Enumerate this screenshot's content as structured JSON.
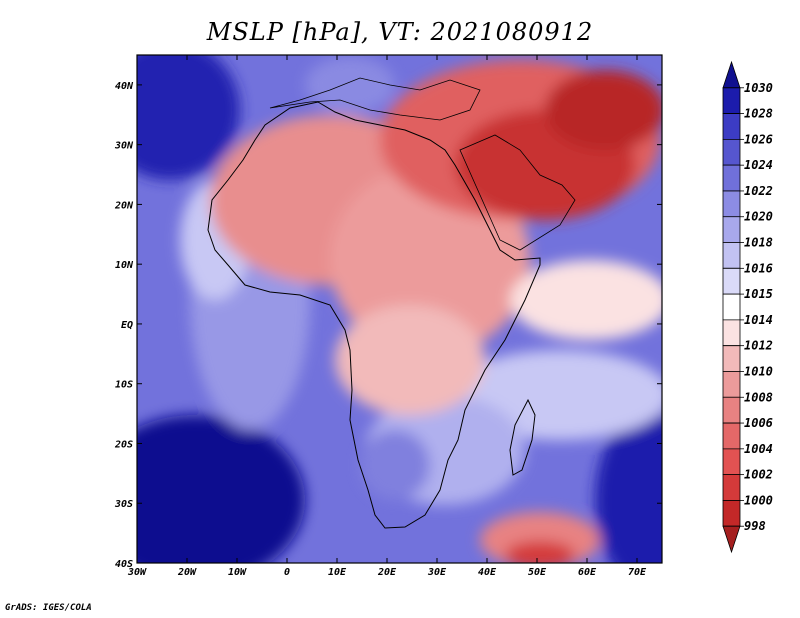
{
  "title": "MSLP [hPa], VT: 2021080912",
  "credit": "GrADS: IGES/COLA",
  "chart_data": {
    "type": "heatmap",
    "title": "MSLP [hPa], VT: 2021080912",
    "variable": "MSLP",
    "units": "hPa",
    "valid_time": "2021080912",
    "lon_range": [
      -30,
      75
    ],
    "lat_range": [
      -40,
      45
    ],
    "x_ticks": [
      {
        "lon": -30,
        "label": "30W"
      },
      {
        "lon": -20,
        "label": "20W"
      },
      {
        "lon": -10,
        "label": "10W"
      },
      {
        "lon": 0,
        "label": "0"
      },
      {
        "lon": 10,
        "label": "10E"
      },
      {
        "lon": 20,
        "label": "20E"
      },
      {
        "lon": 30,
        "label": "30E"
      },
      {
        "lon": 40,
        "label": "40E"
      },
      {
        "lon": 50,
        "label": "50E"
      },
      {
        "lon": 60,
        "label": "60E"
      },
      {
        "lon": 70,
        "label": "70E"
      }
    ],
    "y_ticks": [
      {
        "lat": 40,
        "label": "40N"
      },
      {
        "lat": 30,
        "label": "30N"
      },
      {
        "lat": 20,
        "label": "20N"
      },
      {
        "lat": 10,
        "label": "10N"
      },
      {
        "lat": 0,
        "label": "EQ"
      },
      {
        "lat": -10,
        "label": "10S"
      },
      {
        "lat": -20,
        "label": "20S"
      },
      {
        "lat": -30,
        "label": "30S"
      },
      {
        "lat": -40,
        "label": "40S"
      }
    ],
    "colorbar": {
      "levels": [
        "998",
        "1000",
        "1002",
        "1004",
        "1006",
        "1008",
        "1010",
        "1012",
        "1014",
        "1015",
        "1016",
        "1018",
        "1020",
        "1022",
        "1024",
        "1026",
        "1028",
        "1030"
      ],
      "colors": [
        "#a51f1f",
        "#c32828",
        "#d43a3a",
        "#e25252",
        "#e46868",
        "#e88282",
        "#ec9b9b",
        "#f2baba",
        "#fbe2e2",
        "#ffffff",
        "#dadaf8",
        "#c2c2f2",
        "#a8a8ec",
        "#8c8ce4",
        "#7070da",
        "#5656cf",
        "#3c3cc4",
        "#1c1cac",
        "#10108f"
      ]
    }
  }
}
